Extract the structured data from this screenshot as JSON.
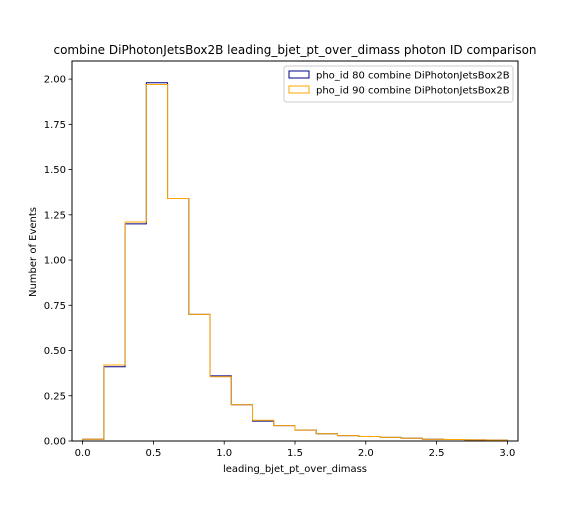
{
  "chart_data": {
    "type": "histogram-step",
    "title": "combine DiPhotonJetsBox2B leading_bjet_pt_over_dimass photon ID comparison",
    "xlabel": "leading_bjet_pt_over_dimass",
    "ylabel": "Number of Events",
    "xlim": [
      -0.075,
      3.075
    ],
    "ylim": [
      0.0,
      2.1
    ],
    "xticks": [
      0.0,
      0.5,
      1.0,
      1.5,
      2.0,
      2.5,
      3.0
    ],
    "xtick_labels": [
      "0.0",
      "0.5",
      "1.0",
      "1.5",
      "2.0",
      "2.5",
      "3.0"
    ],
    "yticks": [
      0.0,
      0.25,
      0.5,
      0.75,
      1.0,
      1.25,
      1.5,
      1.75,
      2.0
    ],
    "ytick_labels": [
      "0.00",
      "0.25",
      "0.50",
      "0.75",
      "1.00",
      "1.25",
      "1.50",
      "1.75",
      "2.00"
    ],
    "grid": false,
    "legend_position": "top-right",
    "bin_edges": [
      0.0,
      0.15,
      0.3,
      0.45,
      0.6,
      0.75,
      0.9,
      1.05,
      1.2,
      1.35,
      1.5,
      1.65,
      1.8,
      1.95,
      2.1,
      2.25,
      2.4,
      2.55,
      2.7,
      2.85,
      3.0
    ],
    "series": [
      {
        "name": "pho_id 80 combine DiPhotonJetsBox2B",
        "color": "#00008b",
        "values": [
          0.01,
          0.41,
          1.2,
          1.98,
          1.34,
          0.7,
          0.36,
          0.2,
          0.11,
          0.085,
          0.06,
          0.04,
          0.03,
          0.025,
          0.02,
          0.015,
          0.01,
          0.008,
          0.006,
          0.005
        ]
      },
      {
        "name": "pho_id 90 combine DiPhotonJetsBox2B",
        "color": "#ffa500",
        "values": [
          0.01,
          0.42,
          1.21,
          1.97,
          1.34,
          0.7,
          0.355,
          0.2,
          0.115,
          0.085,
          0.06,
          0.04,
          0.03,
          0.025,
          0.02,
          0.015,
          0.01,
          0.008,
          0.006,
          0.005
        ]
      }
    ]
  }
}
